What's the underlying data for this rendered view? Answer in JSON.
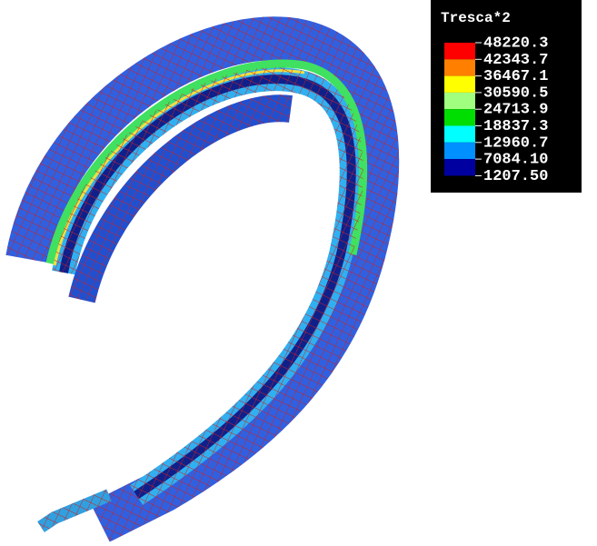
{
  "legend": {
    "title": "Tresca*2",
    "labels": [
      "48220.3",
      "42343.7",
      "36467.1",
      "30590.5",
      "24713.9",
      "18837.3",
      "12960.7",
      "7084.10",
      "1207.50"
    ],
    "colors": [
      "#ff0000",
      "#ff7f00",
      "#ffff00",
      "#a0ff7f",
      "#00dd00",
      "#00ffff",
      "#0090ff",
      "#0000a0"
    ]
  }
}
